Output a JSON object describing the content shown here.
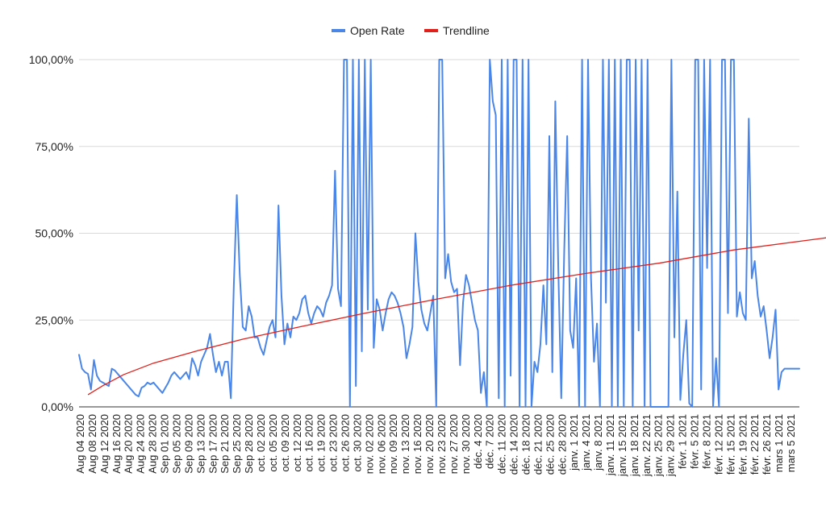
{
  "chart_data": {
    "type": "line",
    "title": "",
    "xlabel": "",
    "ylabel": "",
    "ylim": [
      0,
      100
    ],
    "grid": true,
    "legend_placement": "top-center",
    "colors": {
      "open_rate": "#4a86e8",
      "trendline": "#e0201b"
    },
    "legend": [
      {
        "name": "Open Rate",
        "color": "#4a86e8"
      },
      {
        "name": "Trendline",
        "color": "#e0201b"
      }
    ],
    "y_ticks": [
      {
        "value": 0,
        "label": "0,00%"
      },
      {
        "value": 25,
        "label": "25,00%"
      },
      {
        "value": 50,
        "label": "50,00%"
      },
      {
        "value": 75,
        "label": "75,00%"
      },
      {
        "value": 100,
        "label": "100,00%"
      }
    ],
    "x_tick_labels": [
      "Aug 04 2020",
      "Aug 08 2020",
      "Aug 12 2020",
      "Aug 16 2020",
      "Aug 20 2020",
      "Aug 24 2020",
      "Aug 28 2020",
      "Sep 01 2020",
      "Sep 05 2020",
      "Sep 09 2020",
      "Sep 13 2020",
      "Sep 17 2020",
      "Sep 21 2020",
      "Sep 25 2020",
      "Sep 28 2020",
      "oct. 02 2020",
      "oct. 05 2020",
      "oct. 09 2020",
      "oct. 12 2020",
      "oct. 16 2020",
      "oct. 19 2020",
      "oct. 23 2020",
      "oct. 26 2020",
      "oct. 30 2020",
      "nov. 02 2020",
      "nov. 06 2020",
      "nov. 09 2020",
      "nov. 13 2020",
      "nov. 16 2020",
      "nov. 20 2020",
      "nov. 23 2020",
      "nov. 27 2020",
      "nov. 30 2020",
      "déc. 4 2020",
      "déc. 7 2020",
      "déc. 11 2020",
      "déc. 14 2020",
      "déc. 18 2020",
      "déc. 21 2020",
      "déc. 25 2020",
      "déc. 28 2020",
      "janv. 1 2021",
      "janv. 4 2021",
      "janv. 8 2021",
      "janv. 11 2021",
      "janv. 15 2021",
      "janv. 18 2021",
      "janv. 22 2021",
      "janv. 25 2021",
      "janv. 29 2021",
      "févr. 1 2021",
      "févr. 5 2021",
      "févr. 8 2021",
      "févr. 12 2021",
      "févr. 15 2021",
      "févr. 19 2021",
      "févr. 22 2021",
      "févr. 26 2021",
      "mars 1 2021",
      "mars 5 2021"
    ],
    "series": [
      {
        "name": "Open Rate",
        "color": "#4a86e8",
        "values": [
          15,
          11,
          10,
          9.5,
          5,
          13.5,
          9,
          7.5,
          7,
          6.5,
          6,
          11,
          10.5,
          9.5,
          8.5,
          7.5,
          6.5,
          5.5,
          4.5,
          3.5,
          3,
          5.5,
          6,
          7,
          6.5,
          7,
          6,
          5,
          4,
          5.5,
          7,
          9,
          10,
          9,
          8,
          9,
          10,
          8,
          14,
          12,
          9,
          13,
          15,
          17,
          21,
          15,
          10,
          13,
          9,
          13,
          13,
          2.5,
          35,
          61,
          38,
          23,
          22,
          29,
          26,
          20,
          20,
          17,
          15,
          19,
          23,
          25,
          20,
          58,
          32,
          18,
          24,
          20,
          26,
          25,
          27,
          31,
          32,
          27,
          24,
          27,
          29,
          28,
          26,
          30,
          32,
          35,
          68,
          34,
          29,
          100,
          100,
          0,
          100,
          6,
          100,
          16,
          100,
          28,
          100,
          17,
          31,
          28,
          22,
          27,
          31,
          33,
          32,
          30,
          27,
          23,
          14,
          18,
          23,
          50,
          36,
          28,
          24,
          22,
          27,
          32,
          0,
          100,
          100,
          37,
          44,
          36,
          33,
          34,
          12,
          30,
          38,
          35,
          30,
          25,
          22,
          4,
          10,
          0,
          100,
          88,
          84,
          2.5,
          100,
          0,
          100,
          9,
          100,
          100,
          0,
          100,
          0,
          100,
          0,
          13,
          10,
          18,
          35,
          18,
          78,
          10,
          88,
          40,
          2.5,
          45,
          78,
          22,
          17,
          37,
          0,
          100,
          0,
          100,
          37,
          13,
          24,
          0,
          100,
          30,
          100,
          0,
          100,
          0,
          100,
          0,
          100,
          100,
          0,
          100,
          22,
          100,
          0,
          100,
          0,
          0,
          0,
          0,
          0,
          0,
          0,
          100,
          20,
          62,
          2,
          15,
          25,
          1,
          0,
          100,
          100,
          5,
          100,
          40,
          100,
          0,
          14,
          0,
          100,
          100,
          27,
          100,
          100,
          26,
          33,
          27,
          25,
          83,
          37,
          42,
          32,
          26,
          29,
          22,
          14,
          20,
          28,
          5,
          10,
          11,
          11,
          11,
          11,
          11,
          11
        ]
      },
      {
        "name": "Trendline",
        "color": "#e0201b",
        "values_at_index": [
          [
            3,
            3.5
          ],
          [
            8,
            6.1
          ],
          [
            15,
            9.3
          ],
          [
            25,
            12.6
          ],
          [
            40,
            16.2
          ],
          [
            55,
            19.5
          ],
          [
            75,
            23.2
          ],
          [
            95,
            26.8
          ],
          [
            120,
            31.0
          ],
          [
            145,
            35.0
          ],
          [
            170,
            38.4
          ],
          [
            195,
            41.4
          ],
          [
            220,
            45.2
          ],
          [
            252,
            48.8
          ]
        ]
      }
    ]
  }
}
